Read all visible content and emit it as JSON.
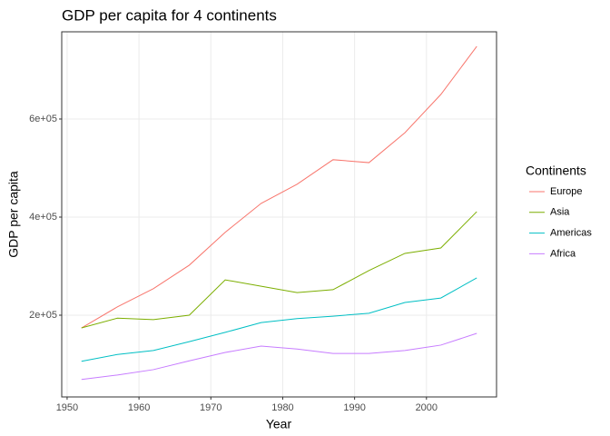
{
  "chart_data": {
    "type": "line",
    "title": "GDP per capita for 4 continents",
    "x_label": "Year",
    "y_label": "GDP per capita",
    "legend_title": "Continents",
    "x": [
      1952,
      1957,
      1962,
      1967,
      1972,
      1977,
      1982,
      1987,
      1992,
      1997,
      2002,
      2007
    ],
    "series": [
      {
        "name": "Europe",
        "color": "#F8766D",
        "values": [
          174000,
          217000,
          254000,
          302000,
          369000,
          428000,
          467000,
          517000,
          511000,
          572000,
          650000,
          748000
        ]
      },
      {
        "name": "Asia",
        "color": "#7CAE00",
        "values": [
          174000,
          194000,
          191000,
          200000,
          272000,
          259000,
          246000,
          252000,
          291000,
          326000,
          337000,
          411000
        ]
      },
      {
        "name": "Americas",
        "color": "#00BFC4",
        "values": [
          106000,
          120000,
          128000,
          146000,
          165000,
          185000,
          193000,
          198000,
          204000,
          226000,
          235000,
          276000
        ]
      },
      {
        "name": "Africa",
        "color": "#C77CFF",
        "values": [
          69000,
          78000,
          89000,
          107000,
          124000,
          137000,
          131000,
          122000,
          122000,
          128000,
          139000,
          163000
        ]
      }
    ],
    "xlim": [
      1949.25,
      2009.75
    ],
    "xticks": [
      1950,
      1960,
      1970,
      1980,
      1990,
      2000
    ],
    "ylim": [
      33333,
      777778
    ],
    "yticks": [
      {
        "value": 200000,
        "label": "2e+05"
      },
      {
        "value": 400000,
        "label": "4e+05"
      },
      {
        "value": 600000,
        "label": "6e+05"
      }
    ],
    "grid": true,
    "legend": "right"
  }
}
